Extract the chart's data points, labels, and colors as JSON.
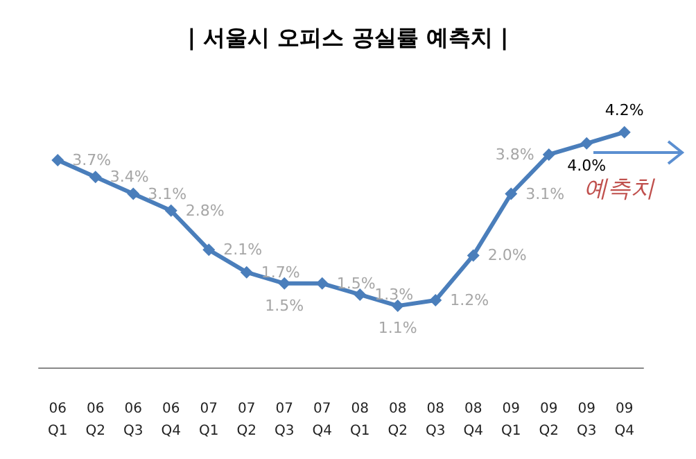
{
  "chart_data": {
    "type": "line",
    "title": "| 서울시 오피스 공실률 예측치 |",
    "categories": [
      "06\nQ1",
      "06\nQ2",
      "06\nQ3",
      "06\nQ4",
      "07\nQ1",
      "07\nQ2",
      "07\nQ3",
      "07\nQ4",
      "08\nQ1",
      "08\nQ2",
      "08\nQ3",
      "08\nQ4",
      "09\nQ1",
      "09\nQ2",
      "09\nQ3",
      "09\nQ4"
    ],
    "series": [
      {
        "color": "#4a7ebb",
        "values": [
          3.7,
          3.4,
          3.1,
          2.8,
          2.1,
          1.7,
          1.5,
          1.5,
          1.3,
          1.1,
          1.2,
          2.0,
          3.1,
          3.8,
          4.0,
          4.2
        ],
        "value_labels": [
          "3.7%",
          "3.4%",
          "3.1%",
          "2.8%",
          "2.1%",
          "1.7%",
          "1.5%",
          "1.5%",
          "1.3%",
          "1.1%",
          "1.2%",
          "2.0%",
          "3.1%",
          "3.8%",
          "4.0%",
          "4.2%"
        ]
      }
    ],
    "marker": "diamond",
    "line_style": "solid",
    "annotations": [
      "예측치"
    ]
  }
}
